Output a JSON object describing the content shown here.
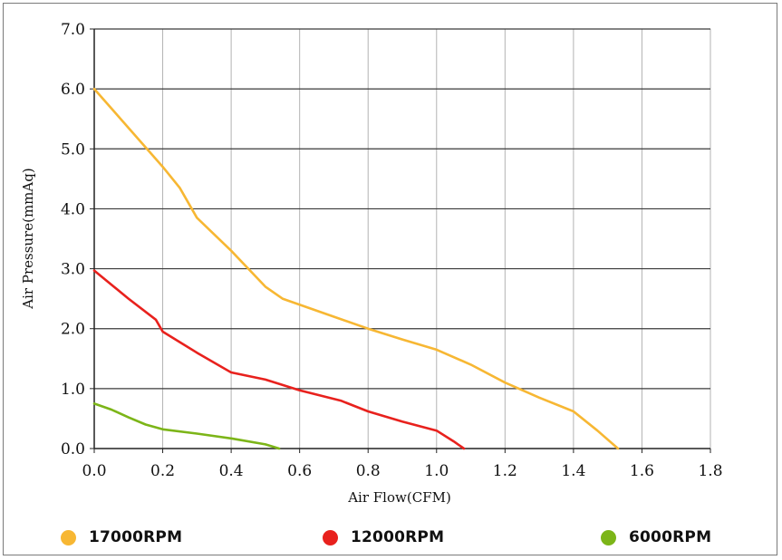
{
  "chart_data": {
    "type": "line",
    "xlabel": "Air Flow(CFM)",
    "ylabel": "Air Pressure(mmAq)",
    "xlim": [
      0,
      1.8
    ],
    "ylim": [
      0,
      7.0
    ],
    "xticks": [
      "0.0",
      "0.2",
      "0.4",
      "0.6",
      "0.8",
      "1.0",
      "1.2",
      "1.4",
      "1.6",
      "1.8"
    ],
    "yticks": [
      "0.0",
      "1.0",
      "2.0",
      "3.0",
      "4.0",
      "5.0",
      "6.0",
      "7.0"
    ],
    "grid": true,
    "legend_position": "bottom",
    "series": [
      {
        "name": "17000RPM",
        "color": "#f7b733",
        "x": [
          0,
          0.1,
          0.2,
          0.25,
          0.3,
          0.4,
          0.5,
          0.55,
          0.7,
          0.8,
          0.9,
          1.0,
          1.1,
          1.2,
          1.3,
          1.4,
          1.47,
          1.53
        ],
        "y": [
          6.0,
          5.35,
          4.7,
          4.35,
          3.85,
          3.3,
          2.7,
          2.5,
          2.2,
          2.0,
          1.82,
          1.65,
          1.4,
          1.1,
          0.85,
          0.62,
          0.3,
          0.0
        ]
      },
      {
        "name": "12000RPM",
        "color": "#e8211d",
        "x": [
          0,
          0.1,
          0.18,
          0.2,
          0.3,
          0.4,
          0.5,
          0.6,
          0.72,
          0.8,
          0.9,
          1.0,
          1.05,
          1.08
        ],
        "y": [
          2.97,
          2.5,
          2.15,
          1.95,
          1.6,
          1.27,
          1.15,
          0.97,
          0.8,
          0.62,
          0.45,
          0.3,
          0.12,
          0.0
        ]
      },
      {
        "name": "6000RPM",
        "color": "#7cb518",
        "x": [
          0,
          0.05,
          0.1,
          0.15,
          0.2,
          0.3,
          0.4,
          0.5,
          0.54
        ],
        "y": [
          0.75,
          0.65,
          0.52,
          0.4,
          0.32,
          0.25,
          0.17,
          0.07,
          0.0
        ]
      }
    ]
  }
}
